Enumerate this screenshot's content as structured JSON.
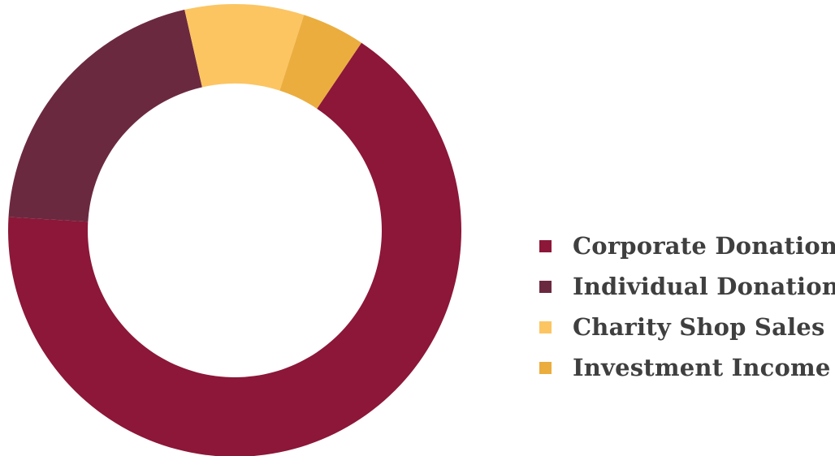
{
  "chart_data": {
    "type": "pie",
    "donut": true,
    "title": "",
    "legend_position": "right",
    "categories": [
      "Corporate Donation",
      "Individual Donation",
      "Charity Shop Sales",
      "Investment Income"
    ],
    "values": [
      66.5,
      20.5,
      8.5,
      4.5
    ],
    "colors": [
      "#8c1738",
      "#6b2940",
      "#fcc562",
      "#ebad3e"
    ]
  }
}
